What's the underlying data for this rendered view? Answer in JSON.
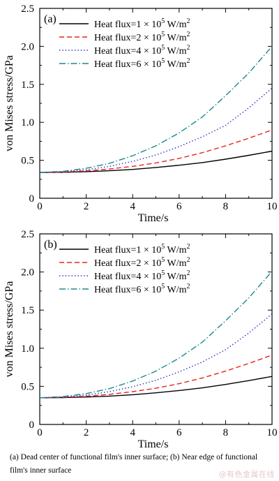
{
  "chart_data": [
    {
      "type": "line",
      "panel_label": "(a)",
      "xlabel": "Time/s",
      "ylabel": "von Mises stress/GPa",
      "xlim": [
        0,
        10
      ],
      "ylim": [
        0,
        2.5
      ],
      "x_ticks": [
        "0",
        "2",
        "4",
        "6",
        "8",
        "10"
      ],
      "y_ticks": [
        "0",
        "0.5",
        "1.0",
        "1.5",
        "2.0",
        "2.5"
      ],
      "legend_placement": "top-left",
      "grid": false,
      "x": [
        0,
        1,
        2,
        3,
        4,
        5,
        6,
        7,
        8,
        9,
        10
      ],
      "series": [
        {
          "name": "Heat flux=1 × 10",
          "exp": "5",
          "unit": " W/m",
          "unit_exp": "2",
          "style": "solid",
          "color": "#000000",
          "values": [
            0.34,
            0.342,
            0.35,
            0.362,
            0.38,
            0.405,
            0.435,
            0.47,
            0.515,
            0.565,
            0.62
          ]
        },
        {
          "name": "Heat flux=2 × 10",
          "exp": "5",
          "unit": " W/m",
          "unit_exp": "2",
          "style": "dashed",
          "color": "#e8231c",
          "values": [
            0.34,
            0.345,
            0.36,
            0.385,
            0.42,
            0.465,
            0.525,
            0.6,
            0.69,
            0.79,
            0.9
          ]
        },
        {
          "name": "Heat flux=4 × 10",
          "exp": "5",
          "unit": " W/m",
          "unit_exp": "2",
          "style": "dotted",
          "color": "#2424c8",
          "values": [
            0.34,
            0.35,
            0.375,
            0.42,
            0.485,
            0.57,
            0.68,
            0.81,
            0.96,
            1.19,
            1.45
          ]
        },
        {
          "name": "Heat flux=6 × 10",
          "exp": "5",
          "unit": " W/m",
          "unit_exp": "2",
          "style": "dashdot",
          "color": "#1a8a8a",
          "values": [
            0.34,
            0.355,
            0.395,
            0.46,
            0.56,
            0.69,
            0.86,
            1.07,
            1.35,
            1.65,
            2.0
          ]
        }
      ]
    },
    {
      "type": "line",
      "panel_label": "(b)",
      "xlabel": "Time/s",
      "ylabel": "von Mises stress/GPa",
      "xlim": [
        0,
        10
      ],
      "ylim": [
        0,
        2.5
      ],
      "x_ticks": [
        "0",
        "2",
        "4",
        "6",
        "8",
        "10"
      ],
      "y_ticks": [
        "0",
        "0.5",
        "1.0",
        "1.5",
        "2.0",
        "2.5"
      ],
      "legend_placement": "top-left",
      "grid": false,
      "x": [
        0,
        1,
        2,
        3,
        4,
        5,
        6,
        7,
        8,
        9,
        10
      ],
      "series": [
        {
          "name": "Heat flux=1 × 10",
          "exp": "5",
          "unit": " W/m",
          "unit_exp": "2",
          "style": "solid",
          "color": "#000000",
          "values": [
            0.35,
            0.352,
            0.36,
            0.372,
            0.39,
            0.415,
            0.445,
            0.48,
            0.525,
            0.575,
            0.63
          ]
        },
        {
          "name": "Heat flux=2 × 10",
          "exp": "5",
          "unit": " W/m",
          "unit_exp": "2",
          "style": "dashed",
          "color": "#e8231c",
          "values": [
            0.35,
            0.355,
            0.37,
            0.395,
            0.43,
            0.475,
            0.535,
            0.61,
            0.7,
            0.8,
            0.91
          ]
        },
        {
          "name": "Heat flux=4 × 10",
          "exp": "5",
          "unit": " W/m",
          "unit_exp": "2",
          "style": "dotted",
          "color": "#2424c8",
          "values": [
            0.35,
            0.36,
            0.385,
            0.43,
            0.495,
            0.58,
            0.69,
            0.82,
            0.98,
            1.2,
            1.45
          ]
        },
        {
          "name": "Heat flux=6 × 10",
          "exp": "5",
          "unit": " W/m",
          "unit_exp": "2",
          "style": "dashdot",
          "color": "#1a8a8a",
          "values": [
            0.35,
            0.365,
            0.405,
            0.47,
            0.57,
            0.7,
            0.87,
            1.08,
            1.36,
            1.66,
            2.01
          ]
        }
      ]
    }
  ],
  "caption": "(a) Dead center of functional film's inner surface; (b) Near edge of functional film's inner surface",
  "watermark": "@有色金属在线"
}
